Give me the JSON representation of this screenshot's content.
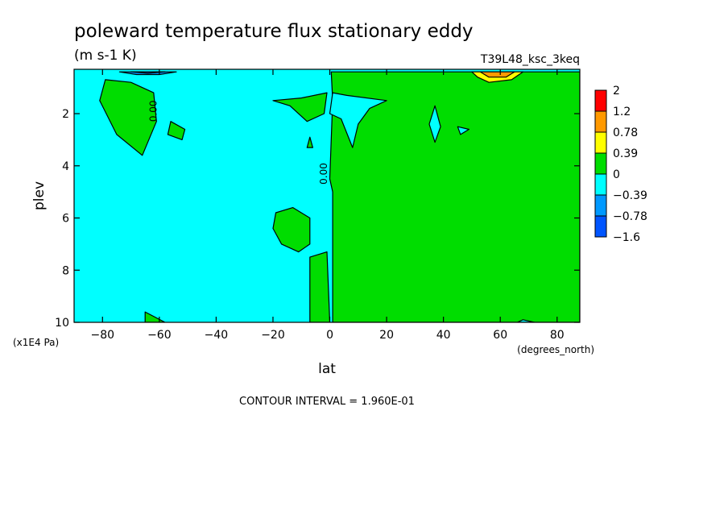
{
  "chart_data": {
    "type": "heatmap",
    "title": "poleward temperature flux stationary eddy",
    "units": "(m s-1 K)",
    "run_label": "T39L48_ksc_3keq",
    "xlabel": "lat",
    "x_units": "(degrees_north)",
    "ylabel": "plev",
    "y_units": "(x1E4 Pa)",
    "xlim": [
      -90,
      88
    ],
    "ylim": [
      0.3,
      10
    ],
    "y_inverted": true,
    "x_ticks": [
      -80,
      -60,
      -40,
      -20,
      0,
      20,
      40,
      60,
      80
    ],
    "x_tick_labels": [
      "−80",
      "−60",
      "−40",
      "−20",
      "0",
      "20",
      "40",
      "60",
      "80"
    ],
    "y_ticks": [
      2,
      4,
      6,
      8,
      10
    ],
    "y_tick_labels": [
      "2",
      "4",
      "6",
      "8",
      "10"
    ],
    "contour_interval_text": "CONTOUR INTERVAL = 1.960E-01",
    "contour_labels": [
      "0.00",
      "0.00"
    ],
    "colorbar": {
      "colors": [
        "#ff0000",
        "#ff9900",
        "#ffff00",
        "#00dd00",
        "#00ffff",
        "#0099ff",
        "#0055ff"
      ],
      "labels": [
        "2",
        "1.2",
        "0.78",
        "0.39",
        "0",
        "−0.39",
        "−0.78",
        "−1.6"
      ]
    },
    "background_level_color": "#00ffff",
    "regions": [
      {
        "level": "0 to 0.39",
        "color": "#00dd00",
        "points": [
          [
            1,
            10
          ],
          [
            1,
            5
          ],
          [
            0,
            4.5
          ],
          [
            1,
            1.5
          ],
          [
            0.5,
            0.4
          ],
          [
            88,
            0.4
          ],
          [
            88,
            10
          ]
        ]
      },
      {
        "level": "0 to 0.39",
        "color": "#00dd00",
        "points": [
          [
            -79,
            0.7
          ],
          [
            -70,
            0.8
          ],
          [
            -62,
            1.2
          ],
          [
            -61,
            2.3
          ],
          [
            -66,
            3.6
          ],
          [
            -75,
            2.8
          ],
          [
            -81,
            1.5
          ]
        ]
      },
      {
        "level": "0 to 0.39",
        "color": "#00dd00",
        "points": [
          [
            -56,
            2.3
          ],
          [
            -51,
            2.6
          ],
          [
            -52,
            3
          ],
          [
            -57,
            2.8
          ]
        ]
      },
      {
        "level": "0 to 0.39",
        "color": "#00dd00",
        "points": [
          [
            -20,
            1.5
          ],
          [
            -10,
            1.4
          ],
          [
            -1,
            1.2
          ],
          [
            -2,
            2
          ],
          [
            -8,
            2.3
          ],
          [
            -14,
            1.7
          ]
        ]
      },
      {
        "level": "0 to 0.39",
        "color": "#00dd00",
        "points": [
          [
            -7,
            2.9
          ],
          [
            -6,
            3.3
          ],
          [
            -8,
            3.3
          ]
        ]
      },
      {
        "level": "0 to 0.39",
        "color": "#00dd00",
        "points": [
          [
            -19,
            5.8
          ],
          [
            -13,
            5.6
          ],
          [
            -7,
            6
          ],
          [
            -7,
            7
          ],
          [
            -11,
            7.3
          ],
          [
            -17,
            7
          ],
          [
            -20,
            6.4
          ]
        ]
      },
      {
        "level": "0 to 0.39",
        "color": "#00dd00",
        "points": [
          [
            -7,
            7.5
          ],
          [
            -1,
            7.3
          ],
          [
            0,
            10
          ],
          [
            -7,
            10
          ]
        ]
      },
      {
        "level": "0 to 0.39",
        "color": "#00dd00",
        "points": [
          [
            -65,
            9.6
          ],
          [
            -58,
            10
          ],
          [
            -65,
            10
          ]
        ]
      },
      {
        "level": "-0.39 to 0",
        "color": "#00ffff",
        "points": [
          [
            1,
            1.2
          ],
          [
            6,
            1.3
          ],
          [
            20,
            1.5
          ],
          [
            14,
            1.8
          ],
          [
            10,
            2.4
          ],
          [
            8,
            3.3
          ],
          [
            4,
            2.2
          ],
          [
            0,
            2
          ]
        ]
      },
      {
        "level": "-0.39 to 0",
        "color": "#00ffff",
        "points": [
          [
            37,
            1.7
          ],
          [
            39,
            2.5
          ],
          [
            37,
            3.1
          ],
          [
            35,
            2.4
          ]
        ]
      },
      {
        "level": "-0.39 to 0",
        "color": "#00ffff",
        "points": [
          [
            45,
            2.5
          ],
          [
            49,
            2.6
          ],
          [
            46,
            2.8
          ]
        ]
      },
      {
        "level": "-0.39 to 0",
        "color": "#00ffff",
        "points": [
          [
            68,
            9.9
          ],
          [
            72,
            10
          ],
          [
            66,
            10
          ]
        ]
      },
      {
        "level": "0.39 to 0.78",
        "color": "#ffff00",
        "points": [
          [
            50,
            0.4
          ],
          [
            68,
            0.4
          ],
          [
            64,
            0.7
          ],
          [
            56,
            0.8
          ],
          [
            52,
            0.6
          ]
        ]
      },
      {
        "level": "0.78 to 1.2",
        "color": "#ff9900",
        "points": [
          [
            53,
            0.4
          ],
          [
            65,
            0.4
          ],
          [
            62,
            0.6
          ],
          [
            56,
            0.6
          ]
        ]
      },
      {
        "level": "-0.78 to -0.39",
        "color": "#0099ff",
        "points": [
          [
            -74,
            0.4
          ],
          [
            -54,
            0.4
          ],
          [
            -60,
            0.5
          ],
          [
            -68,
            0.5
          ]
        ]
      },
      {
        "level": "-1.6 to -0.78",
        "color": "#0055ff",
        "points": [
          [
            -70,
            0.4
          ],
          [
            -58,
            0.4
          ],
          [
            -64,
            0.45
          ]
        ]
      }
    ]
  }
}
